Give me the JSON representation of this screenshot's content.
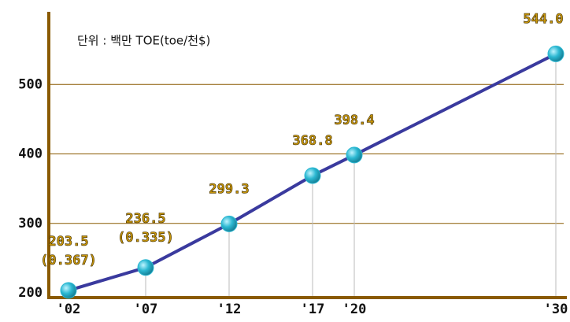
{
  "chart_data": {
    "type": "line",
    "unit_note": "단위 : 백만 TOE(toe/천$)",
    "categories": [
      "'02",
      "'07",
      "'12",
      "'17",
      "'20",
      "'30"
    ],
    "series": [
      {
        "name": null,
        "color": "#3a3a9e",
        "values": [
          203.5,
          236.5,
          299.3,
          368.8,
          398.4,
          544.0
        ],
        "value_labels": [
          "203.5",
          "236.5",
          "299.3",
          "368.8",
          "398.4",
          "544.0"
        ],
        "secondary_labels": [
          "(0.367)",
          "(0.335)",
          null,
          null,
          null,
          null
        ]
      }
    ],
    "marker_color": "#2cb8d2",
    "axis_color": "#8a5a00",
    "ylim": [
      200,
      600
    ],
    "yticks": [
      200,
      300,
      400,
      500
    ],
    "grid": true
  }
}
